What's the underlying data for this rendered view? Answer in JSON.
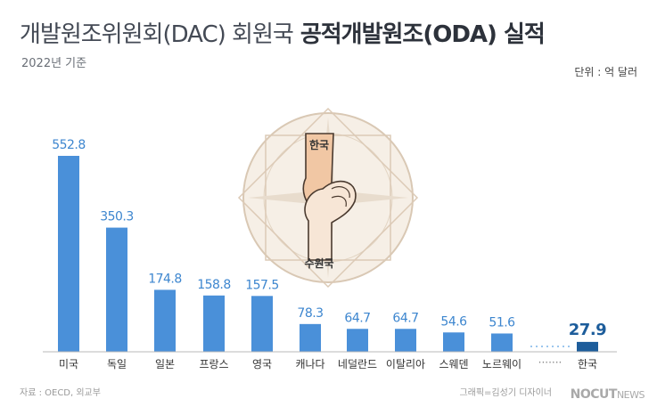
{
  "header": {
    "title_part1": "개발원조위원회(DAC) 회원국",
    "title_part2": "공적개발원조(ODA) 실적",
    "subtitle": "2022년 기준",
    "unit": "단위 : 억 달러"
  },
  "chart_data": {
    "type": "bar",
    "categories": [
      "미국",
      "독일",
      "일본",
      "프랑스",
      "영국",
      "캐나다",
      "네덜란드",
      "이탈리아",
      "스웨덴",
      "노르웨이",
      "한국"
    ],
    "values": [
      552.8,
      350.3,
      174.8,
      158.8,
      157.5,
      78.3,
      64.7,
      64.7,
      54.6,
      51.6,
      27.9
    ],
    "value_labels": [
      "552.8",
      "350.3",
      "174.8",
      "158.8",
      "157.5",
      "78.3",
      "64.7",
      "64.7",
      "54.6",
      "51.6",
      "27.9"
    ],
    "gap_marker": "·······",
    "highlight_category": "한국",
    "ylim": [
      0,
      552.8
    ],
    "colors": {
      "bar": "#4a90d9",
      "highlight": "#1d5d9b",
      "label": "#3d86cf",
      "highlight_label": "#1d5d9b",
      "dots": "#9cc6ee"
    }
  },
  "illustration": {
    "label_top": "한국",
    "label_bottom": "수원국"
  },
  "footer": {
    "source": "자료 : OECD, 외교부",
    "credit": "그래픽=김성기 디자이너",
    "logo_main": "NOCUT",
    "logo_sub": "NEWS"
  }
}
